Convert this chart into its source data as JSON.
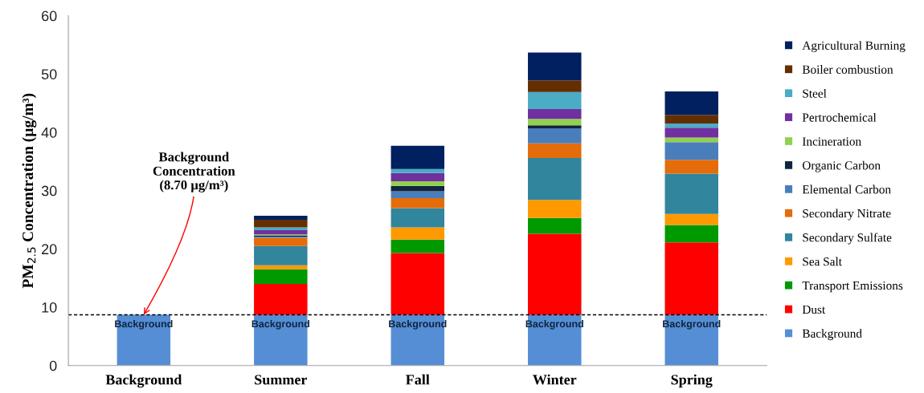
{
  "chart_data": {
    "type": "bar",
    "stacked": true,
    "categories": [
      "Background",
      "Summer",
      "Fall",
      "Winter",
      "Spring"
    ],
    "ylabel": "PM$_{2.5}$ Concentration (µg/m³)",
    "ylim": [
      0,
      60
    ],
    "yticks": [
      0,
      10,
      20,
      30,
      40,
      50,
      60
    ],
    "grid": false,
    "legend": "right",
    "series": [
      {
        "name": "Background",
        "color": "#558ed5",
        "values": [
          8.7,
          8.7,
          8.7,
          8.7,
          8.7
        ],
        "value_labels": [
          "Background",
          "Background",
          "Background",
          "Background",
          "Background"
        ]
      },
      {
        "name": "Dust",
        "color": "#ff0000",
        "values": [
          null,
          5.3,
          10.6,
          13.9,
          12.4
        ]
      },
      {
        "name": "Transport Emissions",
        "color": "#009900",
        "values": [
          null,
          2.5,
          2.3,
          2.7,
          3.0
        ]
      },
      {
        "name": "Sea Salt",
        "color": "#ff9900",
        "values": [
          null,
          0.7,
          2.1,
          3.1,
          1.9
        ]
      },
      {
        "name": "Secondary Sulfate",
        "color": "#31859c",
        "values": [
          null,
          3.3,
          3.3,
          7.2,
          6.9
        ]
      },
      {
        "name": "Secondary Nitrate",
        "color": "#e46c0a",
        "values": [
          null,
          1.4,
          1.7,
          2.5,
          2.4
        ]
      },
      {
        "name": "Elemental Carbon",
        "color": "#4a7ebb",
        "values": [
          null,
          0.2,
          1.2,
          2.6,
          3.0
        ]
      },
      {
        "name": "Organic Carbon",
        "color": "#10253f",
        "values": [
          null,
          0.2,
          0.9,
          0.5,
          0
        ]
      },
      {
        "name": "Incineration",
        "color": "#92d050",
        "values": [
          null,
          0.2,
          0.8,
          1.1,
          0.8
        ]
      },
      {
        "name": "Pertrochemical",
        "color": "#7030a0",
        "values": [
          null,
          0.7,
          1.4,
          1.7,
          1.7
        ]
      },
      {
        "name": "Steel",
        "color": "#4bacc6",
        "values": [
          null,
          0.5,
          0.7,
          2.9,
          0.7
        ]
      },
      {
        "name": "Boiler combustion",
        "color": "#632f00",
        "values": [
          null,
          1.3,
          0,
          2.0,
          1.5
        ]
      },
      {
        "name": "Agricultural Burning",
        "color": "#002060",
        "values": [
          null,
          0.7,
          4.0,
          4.8,
          4.0
        ]
      }
    ],
    "ref_lines": [
      {
        "axis": "y",
        "value": 8.7,
        "color": "#000000",
        "line_style": "dashed"
      }
    ],
    "annotations": [
      {
        "text": "Background\nConcentration\n(8.70 µg/m³)",
        "x": "Background",
        "y": 8.7
      }
    ]
  }
}
